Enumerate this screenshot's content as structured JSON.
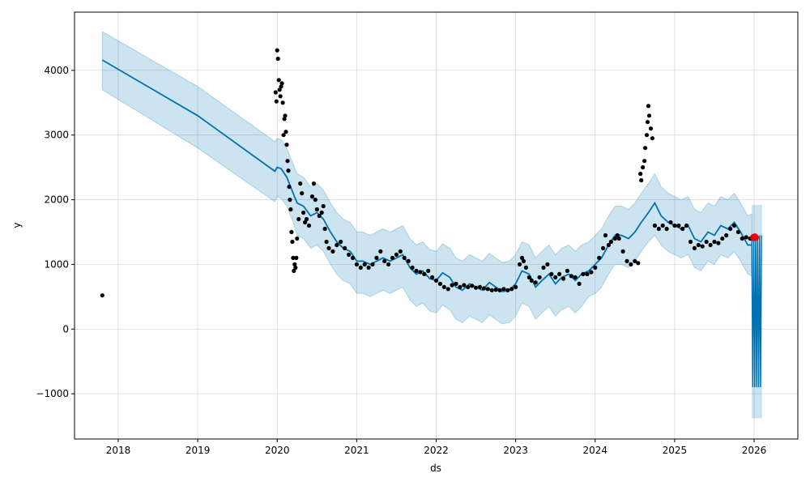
{
  "chart_data": {
    "type": "line",
    "xlabel": "ds",
    "ylabel": "y",
    "xlim": [
      2017.45,
      2026.55
    ],
    "ylim": [
      -1700,
      4900
    ],
    "x_ticks": [
      {
        "value": 2018,
        "label": "2018"
      },
      {
        "value": 2019,
        "label": "2019"
      },
      {
        "value": 2020,
        "label": "2020"
      },
      {
        "value": 2021,
        "label": "2021"
      },
      {
        "value": 2022,
        "label": "2022"
      },
      {
        "value": 2023,
        "label": "2023"
      },
      {
        "value": 2024,
        "label": "2024"
      },
      {
        "value": 2025,
        "label": "2025"
      },
      {
        "value": 2026,
        "label": "2026"
      }
    ],
    "y_ticks": [
      {
        "value": -1000,
        "label": "−1000"
      },
      {
        "value": 0,
        "label": "0"
      },
      {
        "value": 1000,
        "label": "1000"
      },
      {
        "value": 2000,
        "label": "2000"
      },
      {
        "value": 3000,
        "label": "3000"
      },
      {
        "value": 4000,
        "label": "4000"
      }
    ],
    "grid": true,
    "colors": {
      "forecast_line": "#0072B2",
      "interval_fill": "#0072B2",
      "observed_points": "#000000",
      "highlight_points": "#e8000b"
    },
    "forecast": {
      "name": "yhat",
      "x": [
        2017.8,
        2019.0,
        2019.97,
        2020.0,
        2020.05,
        2020.12,
        2020.2,
        2020.25,
        2020.33,
        2020.42,
        2020.5,
        2020.58,
        2020.67,
        2020.75,
        2020.83,
        2020.92,
        2021.0,
        2021.08,
        2021.17,
        2021.25,
        2021.33,
        2021.42,
        2021.5,
        2021.58,
        2021.67,
        2021.75,
        2021.83,
        2021.92,
        2022.0,
        2022.08,
        2022.17,
        2022.25,
        2022.33,
        2022.42,
        2022.5,
        2022.58,
        2022.67,
        2022.75,
        2022.83,
        2022.92,
        2023.0,
        2023.08,
        2023.17,
        2023.25,
        2023.33,
        2023.42,
        2023.5,
        2023.58,
        2023.67,
        2023.75,
        2023.83,
        2023.92,
        2024.0,
        2024.08,
        2024.17,
        2024.25,
        2024.33,
        2024.42,
        2024.5,
        2024.58,
        2024.67,
        2024.75,
        2024.83,
        2024.92,
        2025.0,
        2025.08,
        2025.17,
        2025.25,
        2025.33,
        2025.42,
        2025.5,
        2025.58,
        2025.67,
        2025.75,
        2025.83,
        2025.92,
        2025.97
      ],
      "y": [
        4160,
        3300,
        2440,
        2500,
        2480,
        2350,
        2100,
        1950,
        1900,
        1750,
        1800,
        1700,
        1500,
        1350,
        1250,
        1200,
        1050,
        1050,
        1000,
        1050,
        1100,
        1050,
        1100,
        1150,
        950,
        850,
        900,
        780,
        750,
        870,
        800,
        650,
        600,
        700,
        650,
        600,
        720,
        650,
        580,
        600,
        700,
        900,
        850,
        650,
        750,
        850,
        700,
        800,
        850,
        750,
        850,
        900,
        1000,
        1100,
        1300,
        1450,
        1450,
        1400,
        1500,
        1650,
        1800,
        1950,
        1750,
        1650,
        1600,
        1550,
        1600,
        1400,
        1350,
        1500,
        1450,
        1600,
        1550,
        1650,
        1500,
        1300,
        1300
      ],
      "lower": [
        3700,
        2800,
        1970,
        2050,
        2020,
        1900,
        1650,
        1450,
        1400,
        1250,
        1300,
        1200,
        1000,
        850,
        750,
        700,
        550,
        550,
        500,
        550,
        600,
        550,
        600,
        650,
        450,
        350,
        400,
        280,
        250,
        370,
        300,
        150,
        100,
        200,
        150,
        100,
        220,
        150,
        80,
        100,
        200,
        400,
        350,
        150,
        250,
        350,
        200,
        300,
        350,
        250,
        350,
        500,
        550,
        650,
        850,
        1000,
        1000,
        950,
        1050,
        1200,
        1350,
        1450,
        1300,
        1200,
        1150,
        1100,
        1150,
        950,
        900,
        1050,
        1000,
        1150,
        1100,
        1200,
        1050,
        850,
        820
      ],
      "upper": [
        4600,
        3750,
        2900,
        2950,
        2930,
        2800,
        2550,
        2400,
        2350,
        2200,
        2250,
        2150,
        1950,
        1800,
        1700,
        1650,
        1500,
        1500,
        1450,
        1500,
        1550,
        1500,
        1550,
        1600,
        1400,
        1300,
        1350,
        1230,
        1200,
        1320,
        1250,
        1100,
        1050,
        1150,
        1100,
        1050,
        1170,
        1100,
        1030,
        1050,
        1150,
        1350,
        1300,
        1100,
        1200,
        1300,
        1150,
        1250,
        1300,
        1200,
        1300,
        1350,
        1450,
        1550,
        1750,
        1900,
        1900,
        1850,
        1950,
        2100,
        2250,
        2400,
        2200,
        2100,
        2050,
        2000,
        2050,
        1850,
        1800,
        1950,
        1900,
        2050,
        2000,
        2100,
        1950,
        1750,
        1780
      ]
    },
    "forecast_tail": {
      "x_start": 2025.97,
      "x_end": 2026.1,
      "y_low": -900,
      "y_high": 1450,
      "lower_low": -1380,
      "upper_high": 1920
    },
    "observed": {
      "name": "y",
      "points": [
        [
          2017.8,
          520
        ],
        [
          2020.0,
          4310
        ],
        [
          2020.01,
          4180
        ],
        [
          2020.02,
          3850
        ],
        [
          2020.03,
          3700
        ],
        [
          2020.04,
          3600
        ],
        [
          2020.05,
          3750
        ],
        [
          2020.06,
          3800
        ],
        [
          2020.07,
          3500
        ],
        [
          2019.99,
          3520
        ],
        [
          2019.98,
          3660
        ],
        [
          2020.08,
          3000
        ],
        [
          2020.09,
          3250
        ],
        [
          2020.1,
          3300
        ],
        [
          2020.11,
          3050
        ],
        [
          2020.12,
          2850
        ],
        [
          2020.13,
          2600
        ],
        [
          2020.14,
          2450
        ],
        [
          2020.15,
          2200
        ],
        [
          2020.16,
          2000
        ],
        [
          2020.17,
          1850
        ],
        [
          2020.18,
          1500
        ],
        [
          2020.19,
          1350
        ],
        [
          2020.2,
          1100
        ],
        [
          2020.21,
          900
        ],
        [
          2020.22,
          1000
        ],
        [
          2020.23,
          950
        ],
        [
          2020.24,
          1100
        ],
        [
          2020.25,
          1400
        ],
        [
          2020.27,
          1700
        ],
        [
          2020.29,
          2250
        ],
        [
          2020.31,
          2100
        ],
        [
          2020.33,
          1800
        ],
        [
          2020.35,
          1650
        ],
        [
          2020.37,
          1700
        ],
        [
          2020.4,
          1600
        ],
        [
          2020.44,
          2050
        ],
        [
          2020.46,
          2250
        ],
        [
          2020.48,
          2000
        ],
        [
          2020.5,
          1850
        ],
        [
          2020.53,
          1750
        ],
        [
          2020.56,
          1800
        ],
        [
          2020.58,
          1900
        ],
        [
          2020.6,
          1550
        ],
        [
          2020.62,
          1350
        ],
        [
          2020.65,
          1250
        ],
        [
          2020.7,
          1200
        ],
        [
          2020.75,
          1300
        ],
        [
          2020.8,
          1350
        ],
        [
          2020.85,
          1250
        ],
        [
          2020.9,
          1150
        ],
        [
          2020.95,
          1100
        ],
        [
          2021.0,
          1000
        ],
        [
          2021.05,
          950
        ],
        [
          2021.1,
          1000
        ],
        [
          2021.15,
          950
        ],
        [
          2021.2,
          1000
        ],
        [
          2021.25,
          1100
        ],
        [
          2021.3,
          1200
        ],
        [
          2021.35,
          1050
        ],
        [
          2021.4,
          1000
        ],
        [
          2021.45,
          1100
        ],
        [
          2021.5,
          1150
        ],
        [
          2021.55,
          1200
        ],
        [
          2021.6,
          1100
        ],
        [
          2021.65,
          1050
        ],
        [
          2021.7,
          950
        ],
        [
          2021.75,
          900
        ],
        [
          2021.8,
          880
        ],
        [
          2021.85,
          850
        ],
        [
          2021.9,
          900
        ],
        [
          2021.95,
          800
        ],
        [
          2022.0,
          750
        ],
        [
          2022.05,
          700
        ],
        [
          2022.1,
          650
        ],
        [
          2022.15,
          620
        ],
        [
          2022.2,
          680
        ],
        [
          2022.25,
          700
        ],
        [
          2022.3,
          650
        ],
        [
          2022.35,
          680
        ],
        [
          2022.4,
          650
        ],
        [
          2022.45,
          670
        ],
        [
          2022.5,
          640
        ],
        [
          2022.55,
          650
        ],
        [
          2022.6,
          630
        ],
        [
          2022.65,
          620
        ],
        [
          2022.7,
          600
        ],
        [
          2022.75,
          610
        ],
        [
          2022.8,
          600
        ],
        [
          2022.85,
          620
        ],
        [
          2022.9,
          600
        ],
        [
          2022.95,
          620
        ],
        [
          2023.0,
          650
        ],
        [
          2023.05,
          1000
        ],
        [
          2023.08,
          1100
        ],
        [
          2023.1,
          1050
        ],
        [
          2023.13,
          950
        ],
        [
          2023.17,
          800
        ],
        [
          2023.2,
          750
        ],
        [
          2023.25,
          720
        ],
        [
          2023.3,
          800
        ],
        [
          2023.35,
          950
        ],
        [
          2023.4,
          1000
        ],
        [
          2023.45,
          850
        ],
        [
          2023.5,
          800
        ],
        [
          2023.55,
          850
        ],
        [
          2023.6,
          780
        ],
        [
          2023.65,
          900
        ],
        [
          2023.7,
          820
        ],
        [
          2023.75,
          800
        ],
        [
          2023.8,
          700
        ],
        [
          2023.85,
          850
        ],
        [
          2023.9,
          850
        ],
        [
          2023.95,
          880
        ],
        [
          2024.0,
          950
        ],
        [
          2024.05,
          1100
        ],
        [
          2024.1,
          1250
        ],
        [
          2024.13,
          1450
        ],
        [
          2024.17,
          1300
        ],
        [
          2024.2,
          1350
        ],
        [
          2024.25,
          1400
        ],
        [
          2024.28,
          1450
        ],
        [
          2024.3,
          1400
        ],
        [
          2024.35,
          1200
        ],
        [
          2024.4,
          1050
        ],
        [
          2024.45,
          1000
        ],
        [
          2024.5,
          1050
        ],
        [
          2024.54,
          1020
        ],
        [
          2024.57,
          2400
        ],
        [
          2024.58,
          2300
        ],
        [
          2024.6,
          2500
        ],
        [
          2024.62,
          2600
        ],
        [
          2024.63,
          2800
        ],
        [
          2024.65,
          3000
        ],
        [
          2024.66,
          3200
        ],
        [
          2024.67,
          3450
        ],
        [
          2024.68,
          3300
        ],
        [
          2024.7,
          3100
        ],
        [
          2024.72,
          2950
        ],
        [
          2024.75,
          1600
        ],
        [
          2024.8,
          1550
        ],
        [
          2024.85,
          1600
        ],
        [
          2024.9,
          1550
        ],
        [
          2024.95,
          1650
        ],
        [
          2025.0,
          1600
        ],
        [
          2025.05,
          1600
        ],
        [
          2025.1,
          1550
        ],
        [
          2025.15,
          1600
        ],
        [
          2025.2,
          1350
        ],
        [
          2025.25,
          1250
        ],
        [
          2025.3,
          1300
        ],
        [
          2025.35,
          1280
        ],
        [
          2025.4,
          1350
        ],
        [
          2025.45,
          1300
        ],
        [
          2025.5,
          1350
        ],
        [
          2025.55,
          1330
        ],
        [
          2025.6,
          1400
        ],
        [
          2025.65,
          1450
        ],
        [
          2025.7,
          1550
        ],
        [
          2025.75,
          1600
        ],
        [
          2025.8,
          1500
        ],
        [
          2025.85,
          1400
        ],
        [
          2025.9,
          1420
        ],
        [
          2025.95,
          1400
        ]
      ]
    },
    "highlighted": {
      "name": "recent",
      "points": [
        [
          2025.99,
          1420
        ],
        [
          2026.0,
          1410
        ],
        [
          2026.01,
          1430
        ],
        [
          2026.02,
          1415
        ]
      ]
    }
  }
}
